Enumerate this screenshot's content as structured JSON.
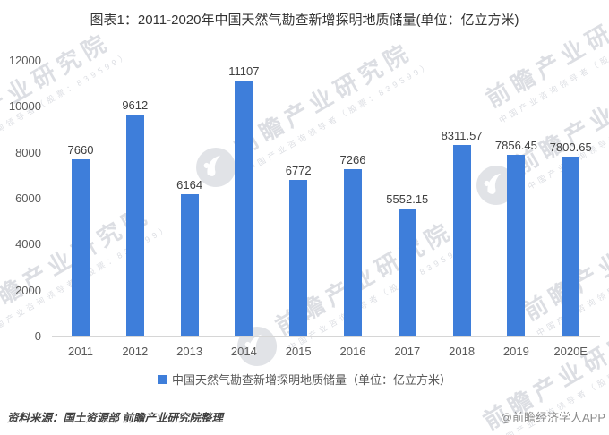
{
  "title": "图表1：2011-2020年中国天然气勘查新增探明地质储量(单位：亿立方米)",
  "chart_data": {
    "type": "bar",
    "categories": [
      "2011",
      "2012",
      "2013",
      "2014",
      "2015",
      "2016",
      "2017",
      "2018",
      "2019",
      "2020E"
    ],
    "values": [
      7660,
      9612,
      6164,
      11107,
      6772,
      7266,
      5552.15,
      8311.57,
      7856.45,
      7800.65
    ],
    "value_labels": [
      "7660",
      "9612",
      "6164",
      "11107",
      "6772",
      "7266",
      "5552.15",
      "8311.57",
      "7856.45",
      "7800.65"
    ],
    "title": "图表1：2011-2020年中国天然气勘查新增探明地质储量(单位：亿立方米)",
    "xlabel": "",
    "ylabel": "",
    "ylim": [
      0,
      12000
    ],
    "yticks": [
      0,
      2000,
      4000,
      6000,
      8000,
      10000,
      12000
    ],
    "grid": false,
    "legend_position": "bottom",
    "legend": [
      "中国天然气勘查新增探明地质储量（单位：亿立方米）"
    ],
    "bar_color": "#3E7EDA"
  },
  "legend": {
    "label": "中国天然气勘查新增探明地质储量（单位：亿立方米）",
    "color": "#3E7EDA"
  },
  "footer": {
    "source": "资料来源：国土资源部 前瞻产业研究院整理",
    "credit": "@前瞻经济学人APP"
  },
  "watermark": {
    "text": "前瞻产业研究院",
    "subtext": "中国产业咨询领导者（股票：839599）"
  },
  "colors": {
    "bar": "#3E7EDA",
    "axis_line": "#D6D6D6",
    "tick_label": "#595959",
    "value_label": "#3F3F3F",
    "title": "#333333"
  }
}
